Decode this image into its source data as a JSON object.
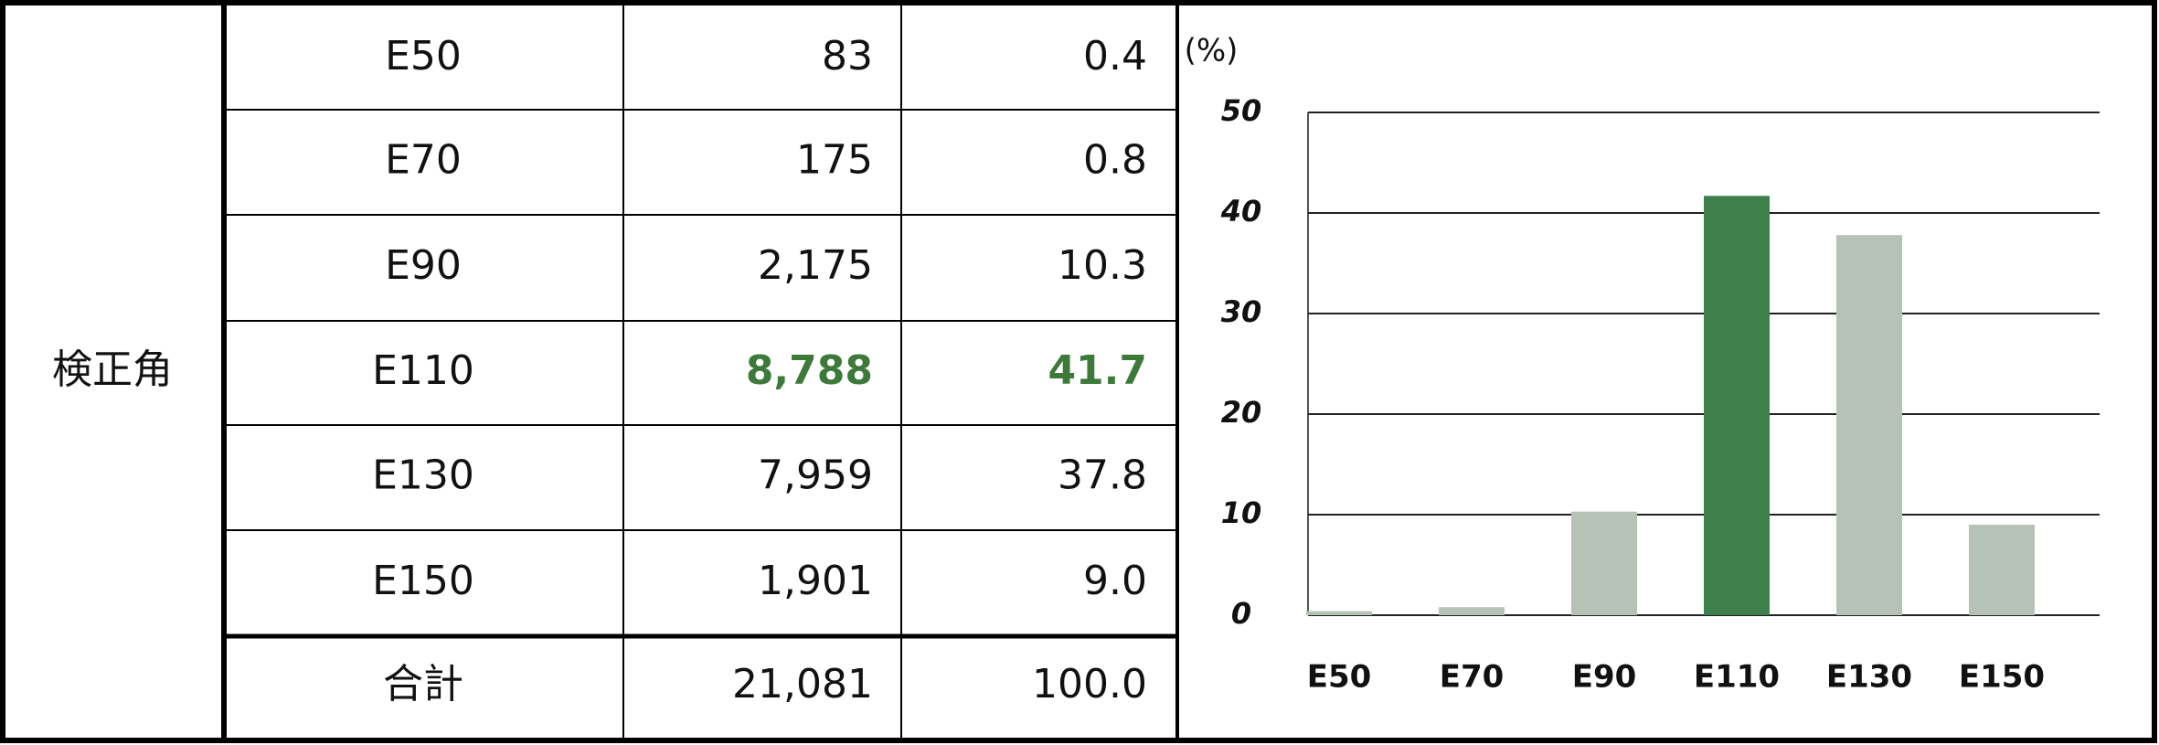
{
  "table": {
    "row_header": "検正角",
    "rows": [
      [
        "E50",
        "83",
        "0.4"
      ],
      [
        "E70",
        "175",
        "0.8"
      ],
      [
        "E90",
        "2,175",
        "10.3"
      ],
      [
        "E110",
        "8,788",
        "41.7"
      ],
      [
        "E130",
        "7,959",
        "37.8"
      ],
      [
        "E150",
        "1,901",
        "9.0"
      ]
    ],
    "total": [
      "合計",
      "21,081",
      "100.0"
    ]
  },
  "chart_data": {
    "type": "bar",
    "y_label": "(%)",
    "categories": [
      "E50",
      "E70",
      "E90",
      "E110",
      "E130",
      "E150"
    ],
    "values": [
      0.4,
      0.8,
      10.3,
      41.7,
      37.8,
      9.0
    ],
    "colors": [
      "#b6c2b5",
      "#b6c2b5",
      "#b6c2b5",
      "#3f7f4c",
      "#b6c2b5",
      "#b6c2b5"
    ],
    "ylim": [
      0,
      50
    ],
    "yticks": [
      0,
      10,
      20,
      30,
      40,
      50
    ],
    "grid": true
  }
}
